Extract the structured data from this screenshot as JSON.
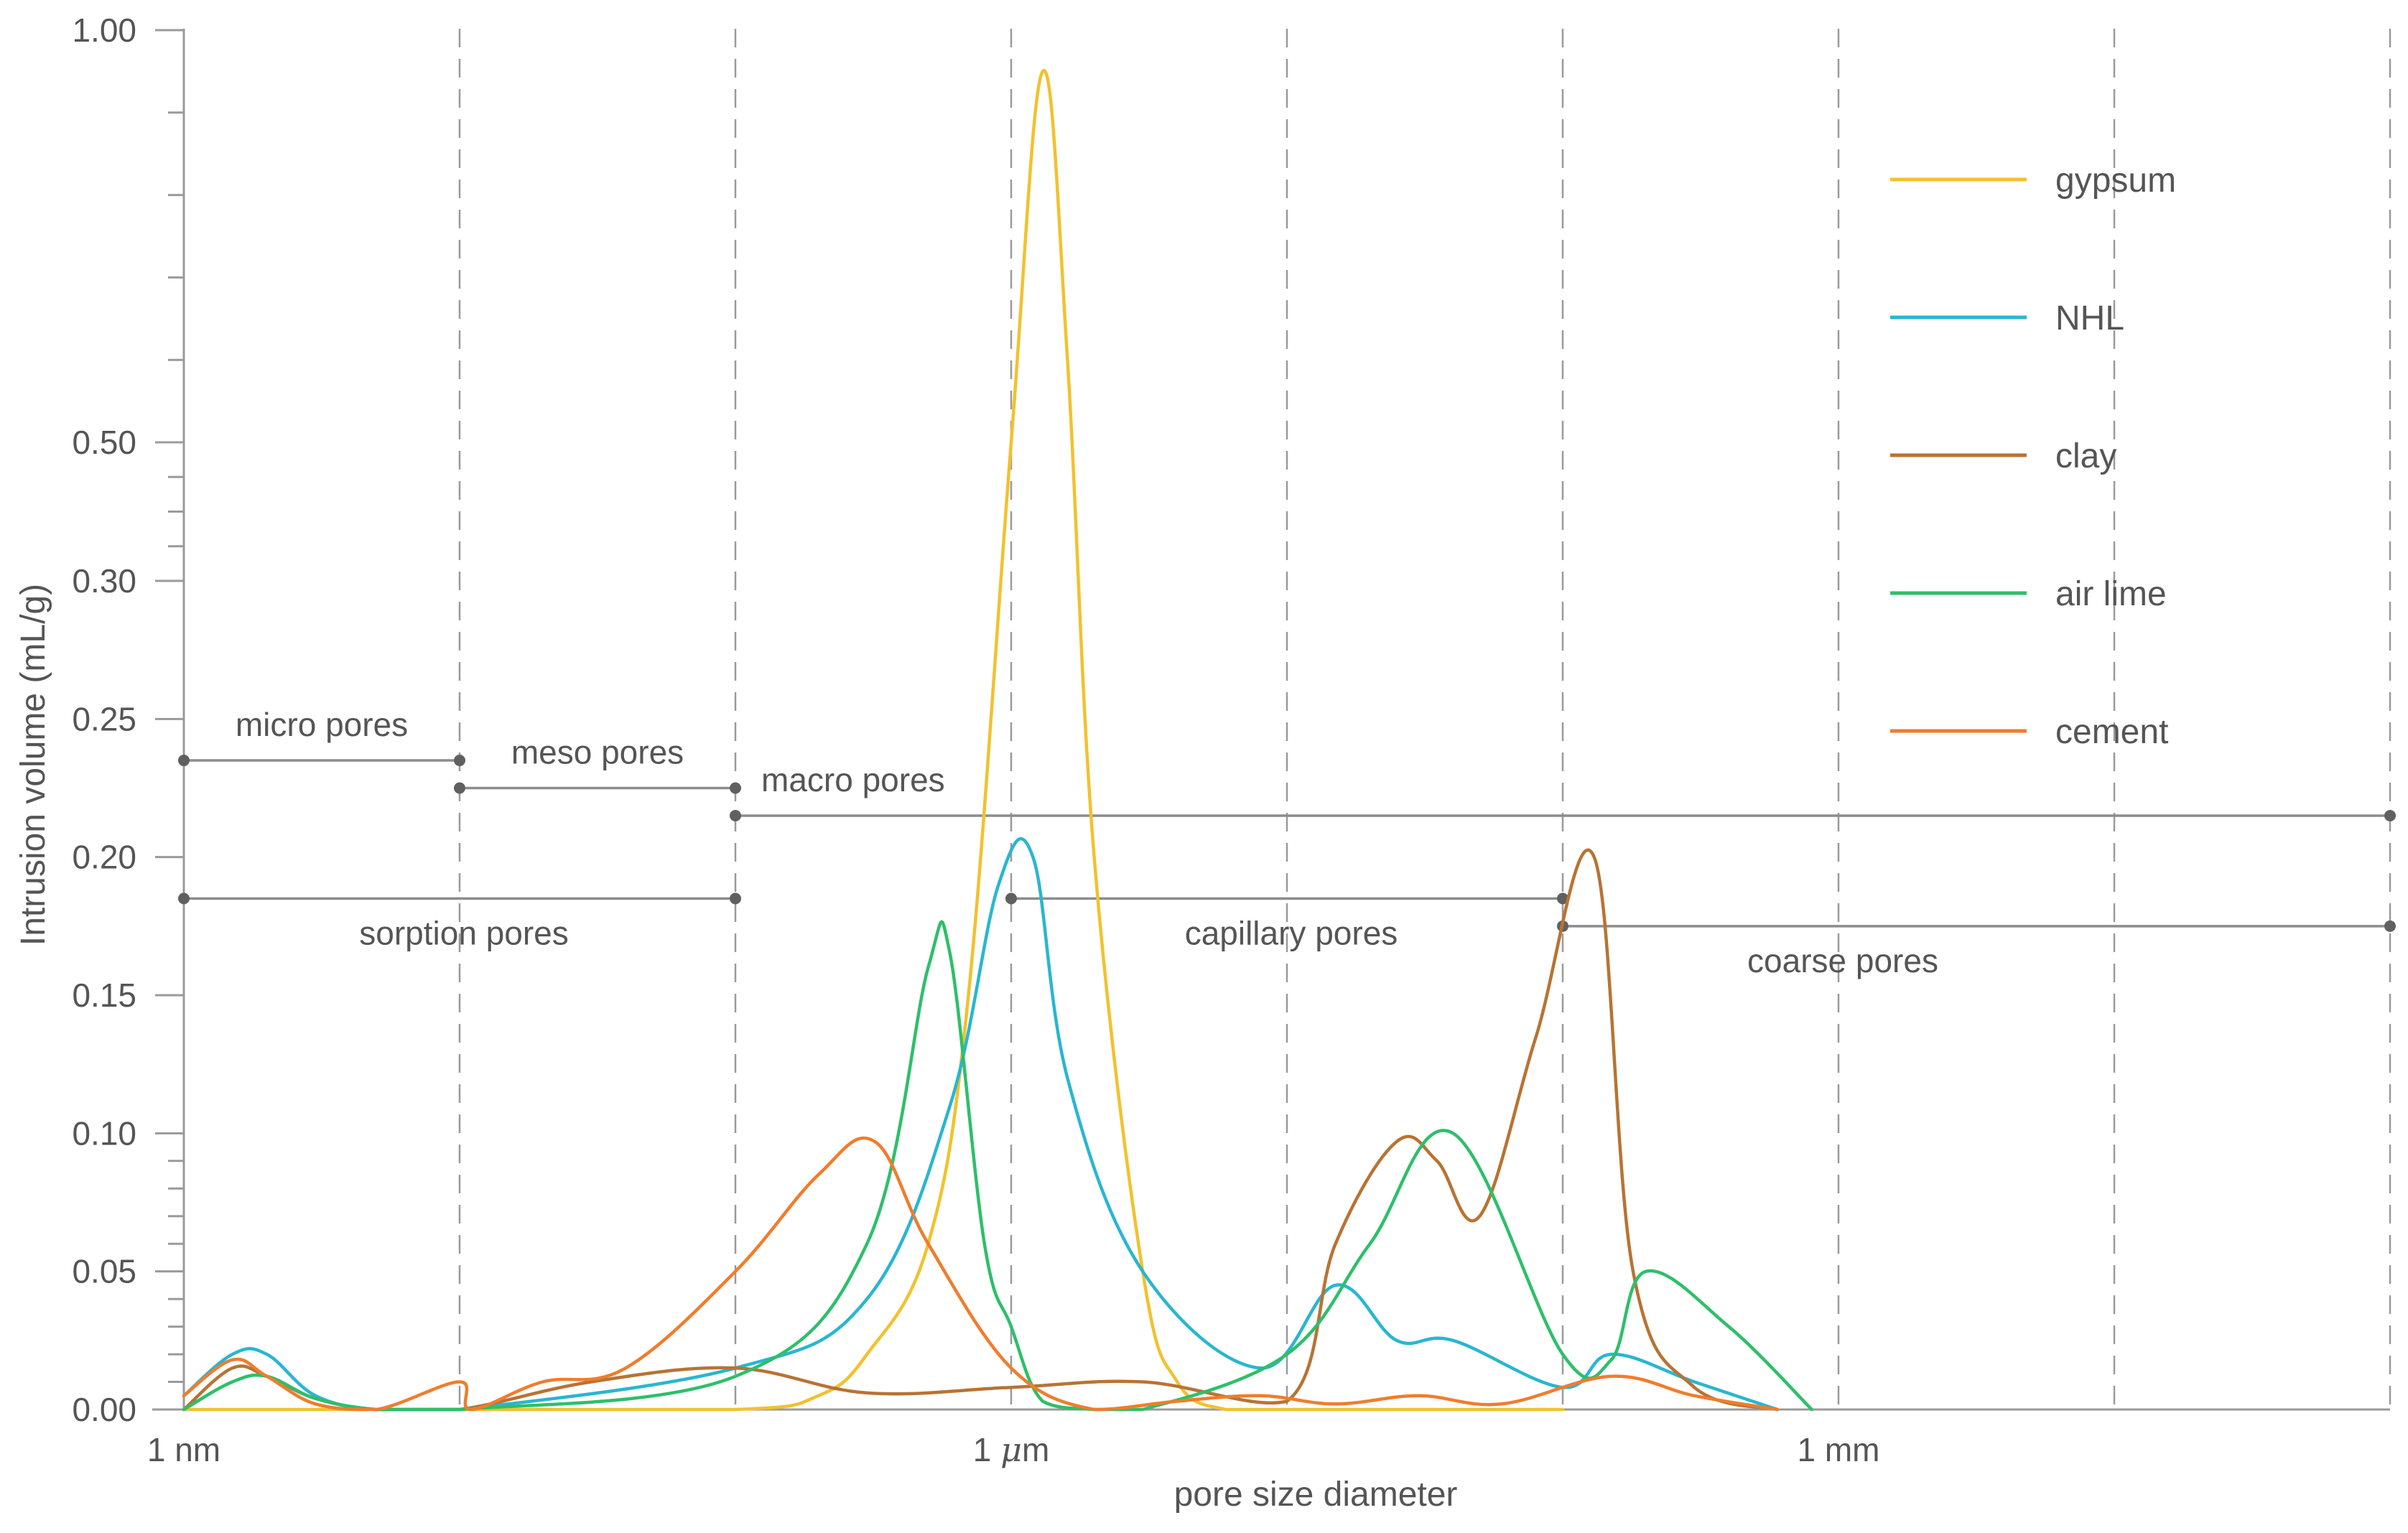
{
  "chart_data": {
    "type": "line",
    "xlabel": "pore size diameter",
    "ylabel": "Intrusion volume (mL/g)",
    "x_scale": "log",
    "x_unit": "m",
    "xlim": [
      1e-09,
      0.1
    ],
    "x_ticks": [
      {
        "value": 1e-09,
        "label": "1 nm"
      },
      {
        "value": 1e-06,
        "label": "1 μm"
      },
      {
        "value": 0.001,
        "label": "1 mm"
      }
    ],
    "y_scale": "piecewise",
    "ylim": [
      0,
      1.0
    ],
    "y_ticks": [
      "0.00",
      "0.05",
      "0.10",
      "0.15",
      "0.20",
      "0.25",
      "0.30",
      "0.50",
      "1.00"
    ],
    "grid": {
      "vertical": true,
      "horizontal": false
    },
    "legend": {
      "position": "top-right"
    },
    "series": [
      {
        "name": "gypsum",
        "color": "#f2c12e",
        "x": [
          1e-09,
          1e-08,
          1e-07,
          2e-07,
          3e-07,
          5e-07,
          7e-07,
          1e-06,
          1.3e-06,
          1.6e-06,
          2e-06,
          3e-06,
          4e-06,
          6e-06,
          1e-05,
          0.0001
        ],
        "y": [
          0.0,
          0.0,
          0.0,
          0.005,
          0.02,
          0.06,
          0.15,
          0.5,
          0.95,
          0.6,
          0.2,
          0.05,
          0.01,
          0.0,
          0.0,
          0.0
        ]
      },
      {
        "name": "NHL",
        "color": "#29b6d1",
        "x": [
          1e-09,
          1.5e-09,
          2e-09,
          3e-09,
          5e-09,
          1e-08,
          1e-07,
          3e-07,
          6e-07,
          9e-07,
          1.2e-06,
          1.6e-06,
          3e-06,
          8e-06,
          1.5e-05,
          2.5e-05,
          4e-05,
          0.0001,
          0.00015,
          0.0003,
          0.0006
        ],
        "y": [
          0.005,
          0.02,
          0.02,
          0.005,
          0.0,
          0.0,
          0.015,
          0.04,
          0.11,
          0.19,
          0.2,
          0.12,
          0.05,
          0.015,
          0.045,
          0.025,
          0.025,
          0.008,
          0.02,
          0.01,
          0.0
        ]
      },
      {
        "name": "clay",
        "color": "#b87333",
        "x": [
          1e-09,
          1.5e-09,
          2e-09,
          3e-09,
          5e-09,
          1e-08,
          3e-08,
          1e-07,
          3e-07,
          1e-06,
          3e-06,
          1e-05,
          1.5e-05,
          2.5e-05,
          3.5e-05,
          5e-05,
          8e-05,
          0.00013,
          0.00018,
          0.0003,
          0.0006
        ],
        "y": [
          0.0,
          0.015,
          0.012,
          0.004,
          0.0,
          0.0,
          0.01,
          0.015,
          0.006,
          0.008,
          0.01,
          0.003,
          0.06,
          0.097,
          0.09,
          0.07,
          0.135,
          0.2,
          0.05,
          0.008,
          0.0
        ]
      },
      {
        "name": "air lime",
        "color": "#2ebf6a",
        "x": [
          1e-09,
          1.5e-09,
          2e-09,
          3e-09,
          5e-09,
          1e-08,
          1e-07,
          3e-07,
          5e-07,
          6e-07,
          8e-07,
          1e-06,
          1.3e-06,
          2e-06,
          3e-06,
          1e-05,
          2e-05,
          4e-05,
          0.0001,
          0.00015,
          0.0002,
          0.0004,
          0.0008
        ],
        "y": [
          0.0,
          0.01,
          0.012,
          0.004,
          0.0,
          0.0,
          0.012,
          0.06,
          0.16,
          0.165,
          0.06,
          0.03,
          0.003,
          0.0,
          0.0,
          0.02,
          0.06,
          0.1,
          0.02,
          0.018,
          0.05,
          0.03,
          0.0
        ]
      },
      {
        "name": "cement",
        "color": "#ef7d2d",
        "x": [
          1e-09,
          1.5e-09,
          2e-09,
          3e-09,
          5e-09,
          1e-08,
          1.1e-08,
          2e-08,
          4e-08,
          1e-07,
          2e-07,
          3.2e-07,
          5e-07,
          1e-06,
          2e-06,
          4e-06,
          8e-06,
          1.5e-05,
          3e-05,
          6e-05,
          0.00015,
          0.0003,
          0.0006
        ],
        "y": [
          0.005,
          0.018,
          0.012,
          0.002,
          0.0,
          0.01,
          0.0,
          0.01,
          0.015,
          0.05,
          0.085,
          0.097,
          0.06,
          0.015,
          0.0,
          0.003,
          0.005,
          0.002,
          0.005,
          0.002,
          0.012,
          0.005,
          0.0
        ]
      }
    ],
    "annotations": [
      {
        "label": "micro pores",
        "x_start": 1e-09,
        "x_end": 1e-08,
        "y": 0.235,
        "label_position": "above"
      },
      {
        "label": "meso pores",
        "x_start": 1e-08,
        "x_end": 1e-07,
        "y": 0.225,
        "label_position": "above"
      },
      {
        "label": "macro pores",
        "x_start": 1e-07,
        "x_end": 0.1,
        "y": 0.215,
        "label_position": "above"
      },
      {
        "label": "sorption pores",
        "x_start": 1e-09,
        "x_end": 1e-07,
        "y": 0.185,
        "label_position": "below"
      },
      {
        "label": "capillary pores",
        "x_start": 1e-06,
        "x_end": 0.0001,
        "y": 0.185,
        "label_position": "below"
      },
      {
        "label": "coarse pores",
        "x_start": 0.0001,
        "x_end": 0.1,
        "y": 0.175,
        "label_position": "below"
      }
    ]
  }
}
